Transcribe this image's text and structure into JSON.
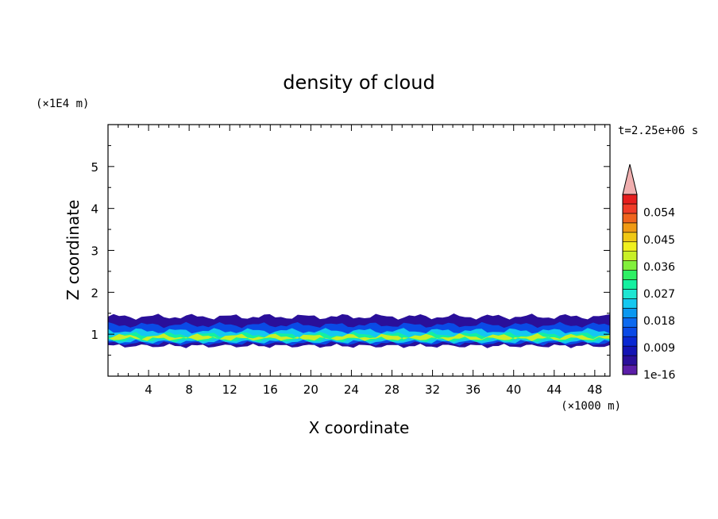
{
  "chart_data": {
    "type": "heatmap",
    "title": "density of cloud",
    "xlabel": "X coordinate",
    "ylabel": "Z coordinate",
    "x_unit": "(×1000 m)",
    "y_unit": "(×1E4 m)",
    "time_label": "t=2.25e+06 s",
    "xlim": [
      0,
      49.5
    ],
    "ylim": [
      0,
      6
    ],
    "x_ticks": [
      4,
      8,
      12,
      16,
      20,
      24,
      28,
      32,
      36,
      40,
      44,
      48
    ],
    "x_tick_labels": [
      "4",
      "8",
      "12",
      "16",
      "20",
      "24",
      "28",
      "32",
      "36",
      "40",
      "44",
      "48"
    ],
    "y_ticks": [
      1,
      2,
      3,
      4,
      5
    ],
    "y_tick_labels": [
      "1",
      "2",
      "3",
      "4",
      "5"
    ],
    "colorbar": {
      "min": 1e-16,
      "max": 0.06,
      "extend": "max",
      "labels": [
        "1e-16",
        "0.009",
        "0.018",
        "0.027",
        "0.036",
        "0.045",
        "0.054"
      ],
      "label_values": [
        0,
        0.009,
        0.018,
        0.027,
        0.036,
        0.045,
        0.054
      ],
      "level_colors": [
        "#5b1ea8",
        "#2a0f9a",
        "#1414b4",
        "#0a28d2",
        "#0a4ae6",
        "#0c6af0",
        "#0a98f0",
        "#14c8f0",
        "#1ee6d2",
        "#14f0a0",
        "#2ef064",
        "#82f03c",
        "#c8f028",
        "#f0f01e",
        "#f0c814",
        "#f09a14",
        "#f0641e",
        "#f03c28",
        "#e61e1e",
        "#f0afaf"
      ],
      "over_color": "#f0afaf"
    },
    "cloud_layers": [
      {
        "z_bottom": 0.72,
        "z_top": 1.42,
        "value": 0.0045
      },
      {
        "z_bottom": 0.78,
        "z_top": 1.22,
        "value": 0.013
      },
      {
        "z_bottom": 0.82,
        "z_top": 1.08,
        "value": 0.023
      },
      {
        "z_bottom": 0.86,
        "z_top": 0.99,
        "value": 0.031
      },
      {
        "z_bottom": 0.89,
        "z_top": 0.95,
        "value": 0.038
      }
    ]
  }
}
